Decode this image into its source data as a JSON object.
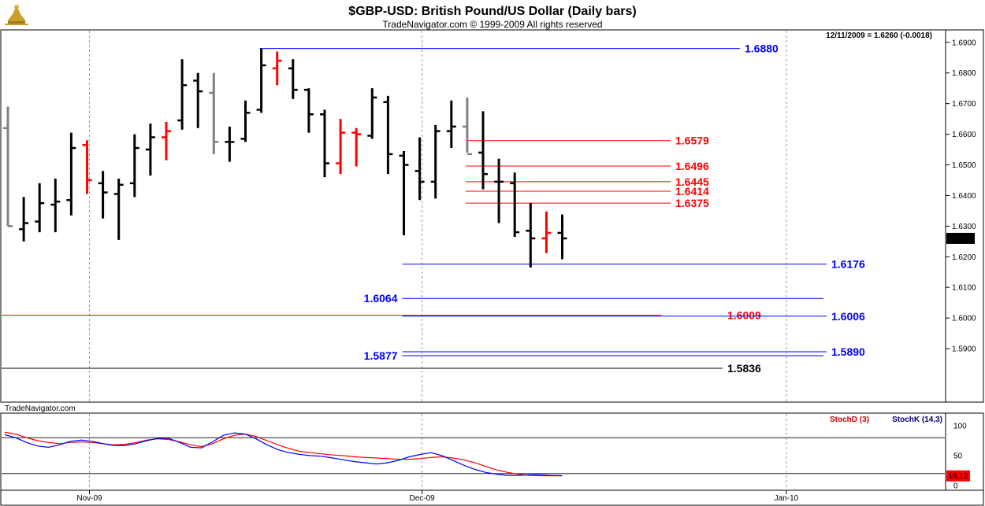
{
  "header": {
    "title": "$GBP-USD:  British Pound/US Dollar  (Daily bars)",
    "subtitle": "TradeNavigator.com © 1999-2009 All rights reserved",
    "readout": "12/11/2009 = 1.6260 (-0.0018)",
    "watermark": "TradeNavigator.com"
  },
  "colors": {
    "blue": "#0000ff",
    "red": "#ff0000",
    "black": "#000000",
    "gray": "#808080",
    "green": "#00aa00",
    "navy": "#000080",
    "darkred": "#cc0000"
  },
  "chart_data": [
    {
      "type": "bar",
      "subtype": "ohlc",
      "title": "$GBP-USD:  British Pound/US Dollar  (Daily bars)",
      "ylim": [
        1.58,
        1.692
      ],
      "y_ticks": [
        "1.6900",
        "1.6800",
        "1.6700",
        "1.6600",
        "1.6500",
        "1.6400",
        "1.6300",
        "1.6200",
        "1.6100",
        "1.6000",
        "1.5900"
      ],
      "x_ticks": [
        {
          "index": 5,
          "label": "Nov-09"
        },
        {
          "index": 26,
          "label": "Dec-09"
        },
        {
          "index": 49,
          "label": "Jan-10"
        }
      ],
      "last_price": "1.6260",
      "bars": [
        {
          "o": 1.662,
          "h": 1.669,
          "l": 1.63,
          "c": 1.63,
          "color": "gray"
        },
        {
          "o": 1.629,
          "h": 1.6395,
          "l": 1.625,
          "c": 1.631,
          "color": "black"
        },
        {
          "o": 1.6315,
          "h": 1.644,
          "l": 1.628,
          "c": 1.6375,
          "color": "black"
        },
        {
          "o": 1.637,
          "h": 1.6455,
          "l": 1.628,
          "c": 1.638,
          "color": "black"
        },
        {
          "o": 1.6385,
          "h": 1.6605,
          "l": 1.6335,
          "c": 1.6555,
          "color": "black"
        },
        {
          "o": 1.6565,
          "h": 1.658,
          "l": 1.6405,
          "c": 1.645,
          "color": "red"
        },
        {
          "o": 1.644,
          "h": 1.648,
          "l": 1.6325,
          "c": 1.641,
          "color": "black"
        },
        {
          "o": 1.6405,
          "h": 1.6455,
          "l": 1.6255,
          "c": 1.6435,
          "color": "black"
        },
        {
          "o": 1.644,
          "h": 1.66,
          "l": 1.6395,
          "c": 1.6555,
          "color": "black"
        },
        {
          "o": 1.655,
          "h": 1.6635,
          "l": 1.6465,
          "c": 1.659,
          "color": "black"
        },
        {
          "o": 1.659,
          "h": 1.664,
          "l": 1.6515,
          "c": 1.661,
          "color": "red"
        },
        {
          "o": 1.6645,
          "h": 1.6845,
          "l": 1.6615,
          "c": 1.676,
          "color": "black"
        },
        {
          "o": 1.6775,
          "h": 1.68,
          "l": 1.662,
          "c": 1.674,
          "color": "black"
        },
        {
          "o": 1.6735,
          "h": 1.68,
          "l": 1.6535,
          "c": 1.6575,
          "color": "gray"
        },
        {
          "o": 1.6575,
          "h": 1.6625,
          "l": 1.651,
          "c": 1.6575,
          "color": "black"
        },
        {
          "o": 1.6585,
          "h": 1.671,
          "l": 1.6575,
          "c": 1.667,
          "color": "black"
        },
        {
          "o": 1.668,
          "h": 1.688,
          "l": 1.667,
          "c": 1.6825,
          "color": "black"
        },
        {
          "o": 1.6815,
          "h": 1.687,
          "l": 1.676,
          "c": 1.684,
          "color": "red"
        },
        {
          "o": 1.6815,
          "h": 1.6845,
          "l": 1.6715,
          "c": 1.6745,
          "color": "black"
        },
        {
          "o": 1.6745,
          "h": 1.675,
          "l": 1.6605,
          "c": 1.6665,
          "color": "black"
        },
        {
          "o": 1.6665,
          "h": 1.668,
          "l": 1.646,
          "c": 1.6505,
          "color": "black"
        },
        {
          "o": 1.6505,
          "h": 1.665,
          "l": 1.647,
          "c": 1.6605,
          "color": "red"
        },
        {
          "o": 1.6605,
          "h": 1.662,
          "l": 1.6495,
          "c": 1.66,
          "color": "red"
        },
        {
          "o": 1.6595,
          "h": 1.675,
          "l": 1.6585,
          "c": 1.672,
          "color": "black"
        },
        {
          "o": 1.6705,
          "h": 1.6725,
          "l": 1.647,
          "c": 1.6535,
          "color": "black"
        },
        {
          "o": 1.653,
          "h": 1.6545,
          "l": 1.627,
          "c": 1.65,
          "color": "black"
        },
        {
          "o": 1.648,
          "h": 1.659,
          "l": 1.6385,
          "c": 1.6445,
          "color": "black"
        },
        {
          "o": 1.6445,
          "h": 1.663,
          "l": 1.639,
          "c": 1.661,
          "color": "black"
        },
        {
          "o": 1.661,
          "h": 1.671,
          "l": 1.6555,
          "c": 1.6625,
          "color": "black"
        },
        {
          "o": 1.6625,
          "h": 1.672,
          "l": 1.654,
          "c": 1.6535,
          "color": "gray"
        },
        {
          "o": 1.654,
          "h": 1.6675,
          "l": 1.642,
          "c": 1.647,
          "color": "black"
        },
        {
          "o": 1.6445,
          "h": 1.652,
          "l": 1.631,
          "c": 1.6445,
          "color": "black"
        },
        {
          "o": 1.644,
          "h": 1.6475,
          "l": 1.6265,
          "c": 1.628,
          "color": "black"
        },
        {
          "o": 1.6285,
          "h": 1.6375,
          "l": 1.6165,
          "c": 1.626,
          "color": "black"
        },
        {
          "o": 1.626,
          "h": 1.6348,
          "l": 1.6212,
          "c": 1.6278,
          "color": "red"
        },
        {
          "o": 1.6278,
          "h": 1.6338,
          "l": 1.6192,
          "c": 1.626,
          "color": "black"
        }
      ],
      "levels": [
        {
          "label": "1.6880",
          "value": 1.688,
          "color": "blue",
          "from": 16,
          "to": "label",
          "label_pos": "right"
        },
        {
          "label": "1.6579",
          "value": 1.6579,
          "color": "red",
          "from": 29,
          "to": "label",
          "label_pos": "right"
        },
        {
          "label": "1.6496",
          "value": 1.6496,
          "color": "red",
          "from": 29,
          "to": "label",
          "label_pos": "right"
        },
        {
          "label": "1.6445",
          "value": 1.6445,
          "color": "red",
          "from": 29,
          "to": "label",
          "label_pos": "right"
        },
        {
          "label": "1.6414",
          "value": 1.6414,
          "color": "red",
          "from": 29,
          "to": "label",
          "label_pos": "right"
        },
        {
          "label": "1.6375",
          "value": 1.6375,
          "color": "red",
          "from": 29,
          "to": "label",
          "label_pos": "right"
        },
        {
          "label": "1.6176",
          "value": 1.6176,
          "color": "blue",
          "from": 25,
          "to": "label",
          "label_pos": "right"
        },
        {
          "label": "1.6064",
          "value": 1.6064,
          "color": "blue",
          "from": 25,
          "to": "end",
          "label_pos": "left"
        },
        {
          "label": "1.6009",
          "value": 1.6009,
          "color": "red",
          "from": "start",
          "to": 41,
          "label_pos": "over"
        },
        {
          "label": "1.6006",
          "value": 1.6006,
          "color": "blue",
          "from": 25,
          "to": "label",
          "label_pos": "right"
        },
        {
          "label": "1.5890",
          "value": 1.589,
          "color": "blue",
          "from": 25,
          "to": "label",
          "label_pos": "right"
        },
        {
          "label": "1.5877",
          "value": 1.5877,
          "color": "blue",
          "from": 25,
          "to": "end",
          "label_pos": "left"
        },
        {
          "label": "1.5836",
          "value": 1.5836,
          "color": "black",
          "from": "start",
          "to": "label",
          "label_pos": "right"
        }
      ]
    },
    {
      "type": "line",
      "title": "",
      "ylim": [
        0,
        100
      ],
      "y_ticks": [
        "100",
        "50",
        "0"
      ],
      "reference_lines": [
        80,
        20
      ],
      "last_value": "16.12",
      "series": [
        {
          "name": "StochD (3)",
          "color": "red",
          "values": [
            89,
            86,
            80,
            75,
            72,
            70,
            72,
            73,
            72,
            70,
            68,
            69,
            72,
            76,
            78,
            77,
            73,
            68,
            65,
            70,
            78,
            84,
            86,
            82,
            75,
            68,
            62,
            57,
            55,
            53,
            51,
            50,
            48,
            47,
            46,
            45,
            44,
            44,
            45,
            47,
            48,
            46,
            43,
            38,
            32,
            26,
            22,
            19,
            17,
            16.5,
            16.3,
            16.12
          ]
        },
        {
          "name": "StochK (14,3)",
          "color": "blue",
          "values": [
            85,
            80,
            72,
            66,
            64,
            68,
            74,
            76,
            74,
            70,
            67,
            67,
            70,
            75,
            79,
            79,
            72,
            64,
            63,
            73,
            84,
            88,
            86,
            78,
            68,
            60,
            55,
            52,
            50,
            49,
            46,
            43,
            40,
            38,
            36,
            38,
            42,
            48,
            52,
            55,
            50,
            42,
            34,
            27,
            22,
            19,
            17,
            17,
            18,
            18,
            17,
            16.5
          ]
        }
      ]
    }
  ]
}
